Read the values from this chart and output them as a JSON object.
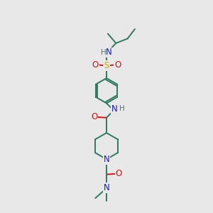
{
  "background_color": "#e8e8e8",
  "C": "#2d7a5f",
  "N": "#1a1acc",
  "O": "#dd1111",
  "S": "#bbaa00",
  "H_col": "#4a7a6a",
  "figsize": [
    3.0,
    3.0
  ],
  "dpi": 100,
  "lw": 1.4,
  "fs": 8.5
}
